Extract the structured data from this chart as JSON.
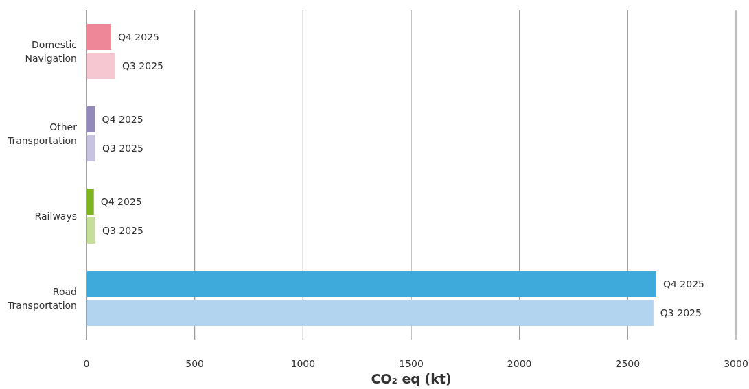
{
  "chart_data": {
    "type": "bar",
    "orientation": "horizontal",
    "xlabel": "CO₂ eq (kt)",
    "categories": [
      "Domestic Navigation",
      "Other Transportation",
      "Railways",
      "Road Transportation"
    ],
    "series": [
      {
        "name": "Q4 2025",
        "colors": [
          "#ee8899",
          "#9489bb",
          "#7db41f",
          "#3ea9db"
        ],
        "values": [
          114,
          40,
          34,
          2632
        ]
      },
      {
        "name": "Q3 2025",
        "colors": [
          "#f6c7d0",
          "#c8c3e0",
          "#c5df9a",
          "#b2d4ee"
        ],
        "values": [
          133,
          41,
          41,
          2619
        ]
      }
    ],
    "xlim": [
      0,
      3000
    ],
    "xticks": [
      0,
      500,
      1000,
      1500,
      2000,
      2500,
      3000
    ],
    "grid": "x"
  }
}
